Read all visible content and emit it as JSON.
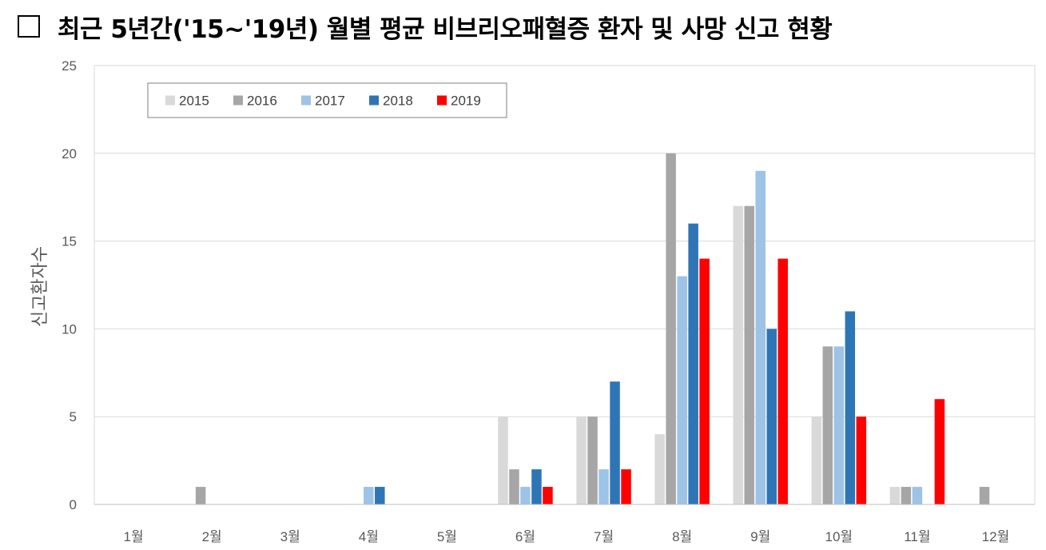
{
  "title": "최근 5년간('15~'19년) 월별 평균 비브리오패혈증 환자 및 사망 신고 현황",
  "chart_data": {
    "type": "bar",
    "title": "",
    "xlabel": "",
    "ylabel": "신고환자수",
    "ylim": [
      0,
      25
    ],
    "yticks": [
      0,
      5,
      10,
      15,
      20,
      25
    ],
    "grid": true,
    "legend_position": "top-left",
    "categories": [
      "1월",
      "2월",
      "3월",
      "4월",
      "5월",
      "6월",
      "7월",
      "8월",
      "9월",
      "10월",
      "11월",
      "12월"
    ],
    "series": [
      {
        "name": "2015",
        "color": "#D9D9D9",
        "values": [
          0,
          0,
          0,
          0,
          0,
          5,
          5,
          4,
          17,
          5,
          1,
          0
        ]
      },
      {
        "name": "2016",
        "color": "#A6A6A6",
        "values": [
          0,
          1,
          0,
          0,
          0,
          2,
          5,
          20,
          17,
          9,
          1,
          1
        ]
      },
      {
        "name": "2017",
        "color": "#9DC3E6",
        "values": [
          0,
          0,
          0,
          1,
          0,
          1,
          2,
          13,
          19,
          9,
          1,
          0
        ]
      },
      {
        "name": "2018",
        "color": "#2E75B6",
        "values": [
          0,
          0,
          0,
          1,
          0,
          2,
          7,
          16,
          10,
          11,
          0,
          0
        ]
      },
      {
        "name": "2019",
        "color": "#FF0000",
        "values": [
          0,
          0,
          0,
          0,
          0,
          1,
          2,
          14,
          14,
          5,
          6,
          0
        ]
      }
    ]
  }
}
